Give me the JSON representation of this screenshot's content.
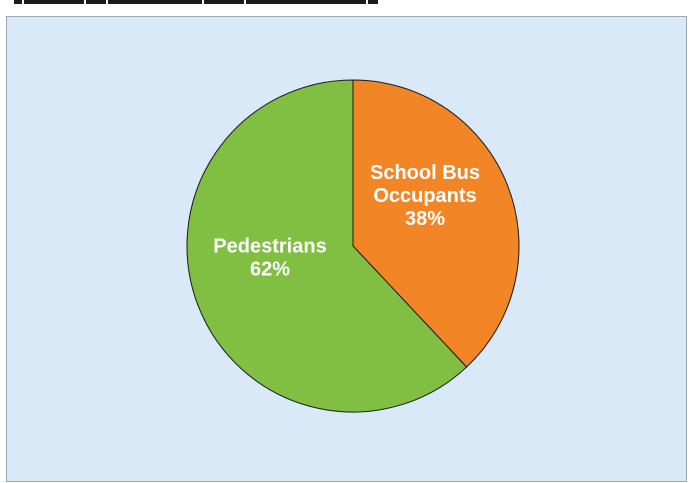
{
  "chart_data": {
    "type": "pie",
    "title": "",
    "slices": [
      {
        "label": "School Bus",
        "label2": "Occupants",
        "value": 38,
        "value_label": "38%",
        "color": "#f28627"
      },
      {
        "label": "Pedestrians",
        "label2": "",
        "value": 62,
        "value_label": "62%",
        "color": "#80bf42"
      }
    ],
    "start_angle_deg": 0,
    "direction": "clockwise",
    "edge_color": "#1a1a1a",
    "background": "#d9e9f7"
  }
}
